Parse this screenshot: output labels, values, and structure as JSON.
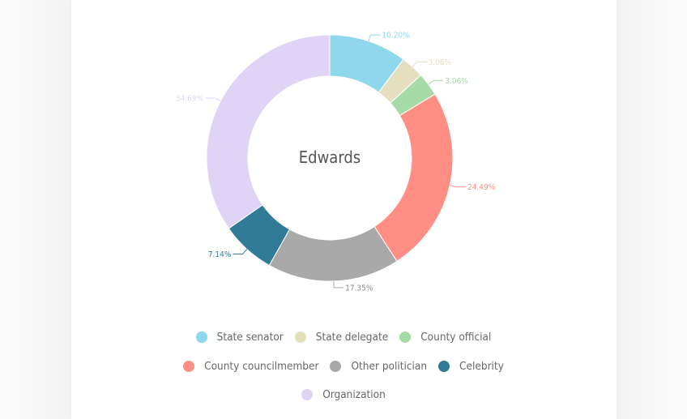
{
  "chart_data": {
    "type": "pie",
    "title": "Edwards",
    "donut": true,
    "slices": [
      {
        "label": "State senator",
        "value": 10.2,
        "display": "10.20%",
        "color": "#8fd7ec"
      },
      {
        "label": "State delegate",
        "value": 3.06,
        "display": "3.06%",
        "color": "#e6dfbf"
      },
      {
        "label": "County official",
        "value": 3.06,
        "display": "3.06%",
        "color": "#a6dba8"
      },
      {
        "label": "County councilmember",
        "value": 24.49,
        "display": "24.49%",
        "color": "#ff8f85"
      },
      {
        "label": "Other politician",
        "value": 17.35,
        "display": "17.35%",
        "color": "#a9a9a9"
      },
      {
        "label": "Celebrity",
        "value": 7.14,
        "display": "7.14%",
        "color": "#2f7b98"
      },
      {
        "label": "Organization",
        "value": 34.69,
        "display": "34.69%",
        "color": "#dfd4f6"
      }
    ],
    "legend_position": "bottom"
  }
}
